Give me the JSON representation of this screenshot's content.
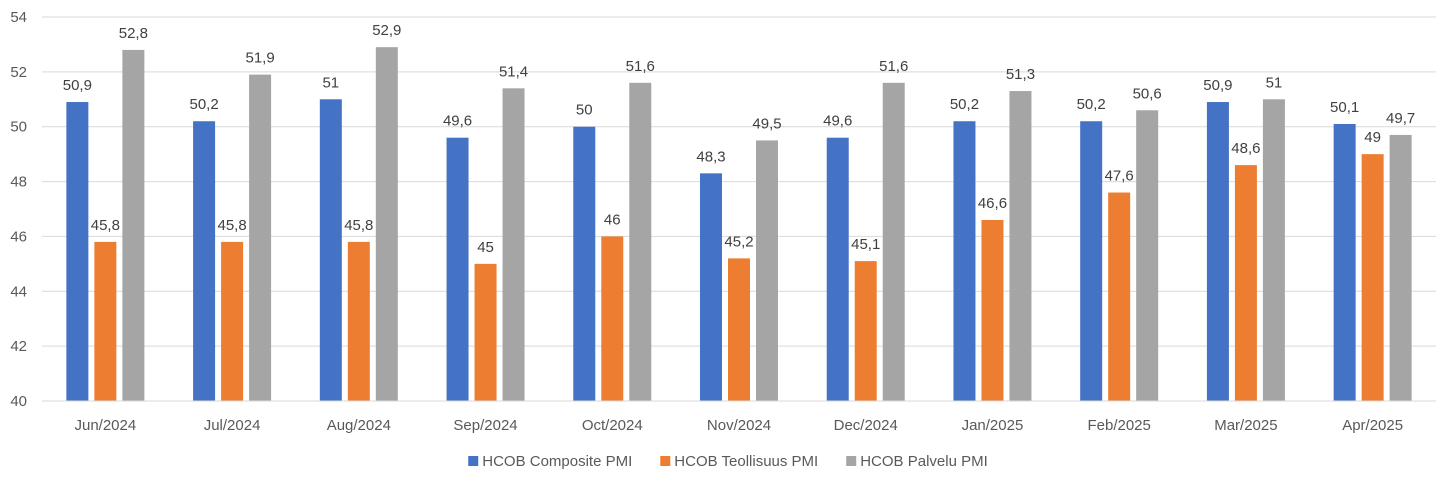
{
  "chart_data": {
    "type": "bar",
    "categories": [
      "Jun/2024",
      "Jul/2024",
      "Aug/2024",
      "Sep/2024",
      "Oct/2024",
      "Nov/2024",
      "Dec/2024",
      "Jan/2025",
      "Feb/2025",
      "Mar/2025",
      "Apr/2025"
    ],
    "series": [
      {
        "name": "HCOB Composite PMI",
        "color": "#4472C4",
        "values": [
          50.9,
          50.2,
          51,
          49.6,
          50,
          48.3,
          49.6,
          50.2,
          50.2,
          50.9,
          50.1
        ],
        "labels": [
          "50,9",
          "50,2",
          "51",
          "49,6",
          "50",
          "48,3",
          "49,6",
          "50,2",
          "50,2",
          "50,9",
          "50,1"
        ]
      },
      {
        "name": "HCOB Teollisuus PMI",
        "color": "#ED7D31",
        "values": [
          45.8,
          45.8,
          45.8,
          45,
          46,
          45.2,
          45.1,
          46.6,
          47.6,
          48.6,
          49
        ],
        "labels": [
          "45,8",
          "45,8",
          "45,8",
          "45",
          "46",
          "45,2",
          "45,1",
          "46,6",
          "47,6",
          "48,6",
          "49"
        ]
      },
      {
        "name": "HCOB Palvelu PMI",
        "color": "#A5A5A5",
        "values": [
          52.8,
          51.9,
          52.9,
          51.4,
          51.6,
          49.5,
          51.6,
          51.3,
          50.6,
          51,
          49.7
        ],
        "labels": [
          "52,8",
          "51,9",
          "52,9",
          "51,4",
          "51,6",
          "49,5",
          "51,6",
          "51,3",
          "50,6",
          "51",
          "49,7"
        ]
      }
    ],
    "ylim": [
      40,
      54
    ],
    "yticks": [
      "40",
      "42",
      "44",
      "46",
      "48",
      "50",
      "52",
      "54"
    ],
    "grid": true,
    "legend_position": "bottom"
  }
}
